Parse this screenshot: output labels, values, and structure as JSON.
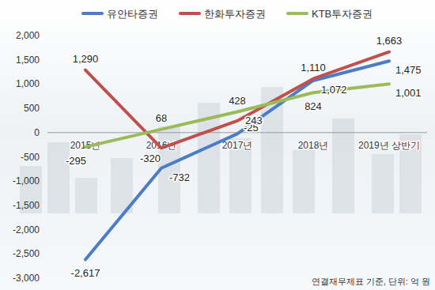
{
  "chart_data": {
    "type": "line",
    "categories": [
      "2015년",
      "2016년",
      "2017년",
      "2018년",
      "2019년 상반기"
    ],
    "series": [
      {
        "name": "유안타증권",
        "color": "#4a7cc7",
        "values": [
          -2617,
          -732,
          -25,
          1072,
          1475
        ],
        "value_labels": [
          "-2,617",
          "-732",
          "-25",
          "1,072",
          "1,475"
        ]
      },
      {
        "name": "한화투자증권",
        "color": "#c0504d",
        "values": [
          1290,
          -320,
          243,
          1110,
          1663
        ],
        "value_labels": [
          "1,290",
          "-320",
          "243",
          "1,110",
          "1,663"
        ]
      },
      {
        "name": "KTB투자증권",
        "color": "#9bbb59",
        "values": [
          -295,
          68,
          428,
          824,
          1001
        ],
        "value_labels": [
          "-295",
          "68",
          "428",
          "824",
          "1,001"
        ]
      }
    ],
    "ylim": [
      -3000,
      2000
    ],
    "yticks": [
      {
        "value": -3000,
        "label": "-3,000"
      },
      {
        "value": -2500,
        "label": "-2,500"
      },
      {
        "value": -2000,
        "label": "-2,000"
      },
      {
        "value": -1500,
        "label": "-1,500"
      },
      {
        "value": -1000,
        "label": "-1,000"
      },
      {
        "value": -500,
        "label": "-500"
      },
      0,
      500,
      {
        "value": 1000,
        "label": "1,000"
      },
      {
        "value": 1500,
        "label": "1,500"
      },
      {
        "value": 2000,
        "label": "2,000"
      }
    ],
    "grid": false,
    "legend": "top",
    "data_labels": true,
    "annotations": [
      "연결재무제표 기준, 단위: 억 원"
    ]
  }
}
